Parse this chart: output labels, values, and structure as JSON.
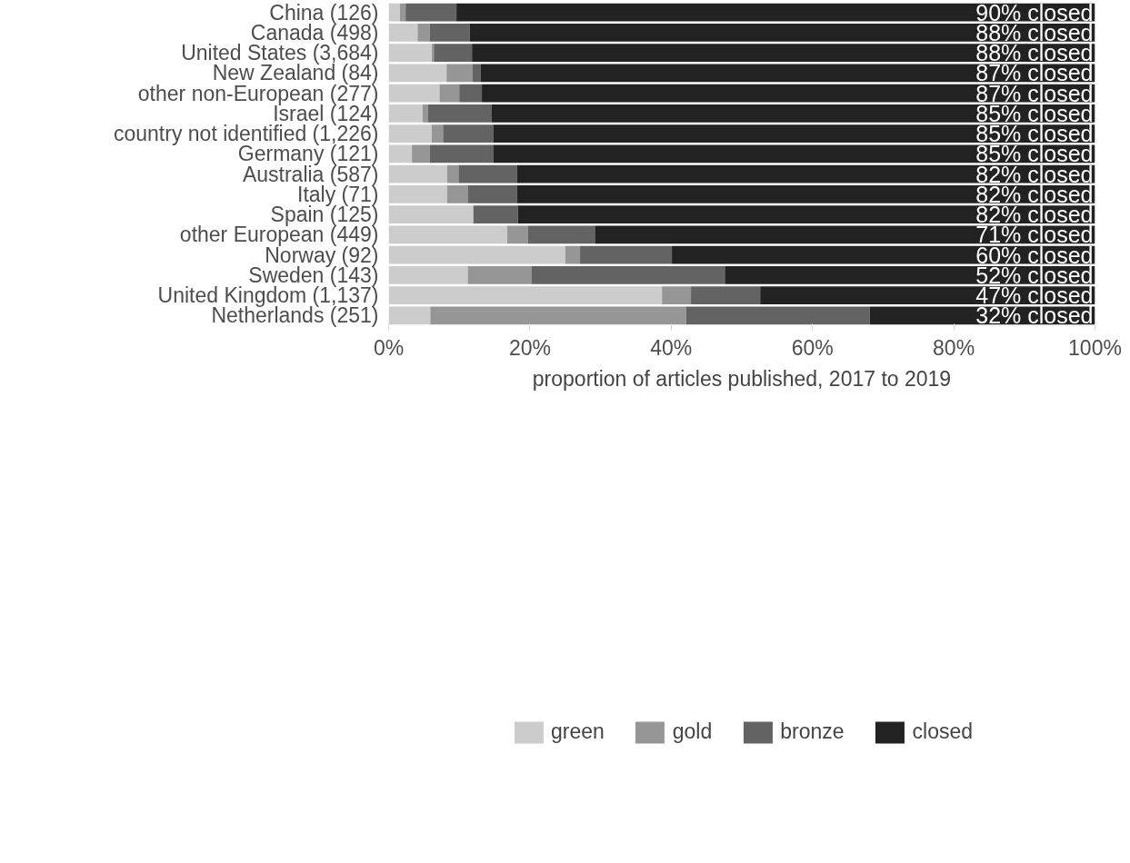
{
  "chart_data": {
    "type": "bar",
    "orientation": "horizontal",
    "stacked": true,
    "categories": [
      "China (126)",
      "Canada (498)",
      "United States (3,684)",
      "New Zealand (84)",
      "other non-European (277)",
      "Israel (124)",
      "country not identified (1,226)",
      "Germany (121)",
      "Australia (587)",
      "Italy (71)",
      "Spain (125)",
      "other European (449)",
      "Norway (92)",
      "Sweden (143)",
      "United Kingdom (1,137)",
      "Netherlands (251)"
    ],
    "series": [
      {
        "name": "green",
        "color": "#cccccc",
        "values": [
          1.6,
          4.1,
          6.1,
          8.2,
          7.2,
          4.8,
          6.1,
          3.3,
          8.3,
          8.3,
          12.0,
          16.8,
          25.0,
          11.2,
          38.7,
          5.9
        ]
      },
      {
        "name": "gold",
        "color": "#969696",
        "values": [
          0.8,
          1.7,
          0.3,
          3.7,
          2.8,
          0.8,
          1.6,
          2.5,
          1.6,
          2.9,
          0,
          2.9,
          2.1,
          9.0,
          4.1,
          36.2
        ]
      },
      {
        "name": "bronze",
        "color": "#636363",
        "values": [
          7.2,
          5.7,
          5.4,
          1.1,
          3.2,
          9.0,
          7.1,
          9.0,
          8.3,
          7.0,
          6.3,
          9.5,
          13.0,
          27.4,
          9.8,
          26.0
        ]
      },
      {
        "name": "closed",
        "color": "#222222",
        "values": [
          90.4,
          88.5,
          88.2,
          87.0,
          86.8,
          85.4,
          85.2,
          85.2,
          81.8,
          81.8,
          81.7,
          70.8,
          59.9,
          52.4,
          47.4,
          31.9
        ],
        "value_labels": [
          "90% closed",
          "88% closed",
          "88% closed",
          "87% closed",
          "87% closed",
          "85% closed",
          "85% closed",
          "85% closed",
          "82% closed",
          "82% closed",
          "82% closed",
          "71% closed",
          "60% closed",
          "52% closed",
          "47% closed",
          "32% closed"
        ]
      }
    ],
    "xlim": [
      0,
      100
    ],
    "xticks": [
      {
        "value": 0,
        "label": "0%"
      },
      {
        "value": 20,
        "label": "20%"
      },
      {
        "value": 40,
        "label": "40%"
      },
      {
        "value": 60,
        "label": "60%"
      },
      {
        "value": 80,
        "label": "80%"
      },
      {
        "value": 100,
        "label": "100%"
      }
    ],
    "xlabel": "proportion of articles published, 2017 to 2019",
    "legend": "bottom",
    "grid": false
  }
}
